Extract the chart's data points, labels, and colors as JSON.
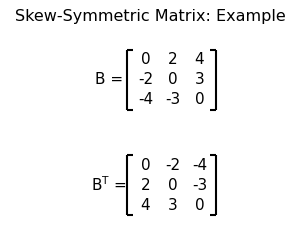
{
  "title": "Skew-Symmetric Matrix: Example",
  "title_fontsize": 11.5,
  "background_color": "#ffffff",
  "text_color": "#000000",
  "matrix_B": [
    [
      "0",
      "2",
      "4"
    ],
    [
      "-2",
      "0",
      "3"
    ],
    [
      "-4",
      "-3",
      "0"
    ]
  ],
  "matrix_BT": [
    [
      "0",
      "-2",
      "-4"
    ],
    [
      "2",
      "0",
      "-3"
    ],
    [
      "4",
      "3",
      "0"
    ]
  ],
  "label_B": "B = ",
  "cell_fontsize": 11,
  "label_fontsize": 11,
  "fig_w": 3.0,
  "fig_h": 2.37,
  "dpi": 100
}
